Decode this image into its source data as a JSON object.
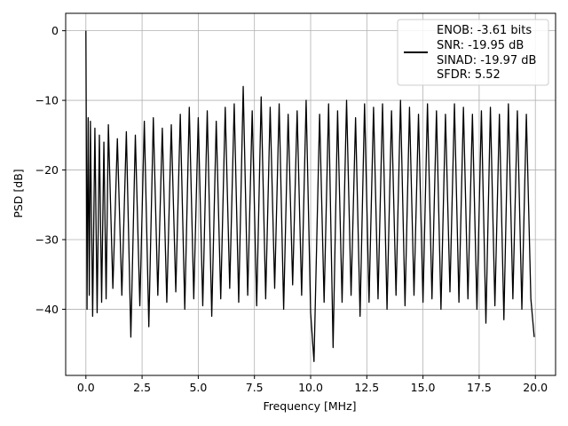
{
  "chart_data": {
    "type": "line",
    "xlabel": "Frequency [MHz]",
    "ylabel": "PSD [dB]",
    "xlim": [
      -0.9,
      20.9
    ],
    "ylim": [
      -49.5,
      2.5
    ],
    "xticks": [
      0.0,
      2.5,
      5.0,
      7.5,
      10.0,
      12.5,
      15.0,
      17.5,
      20.0
    ],
    "xtick_labels": [
      "0.0",
      "2.5",
      "5.0",
      "7.5",
      "10.0",
      "12.5",
      "15.0",
      "17.5",
      "20.0"
    ],
    "yticks": [
      0,
      -10,
      -20,
      -30,
      -40
    ],
    "ytick_labels": [
      "0",
      "−10",
      "−20",
      "−30",
      "−40"
    ],
    "grid": true,
    "legend_position": "top-right",
    "legend": [
      "ENOB: -3.61 bits",
      "SNR: -19.95 dB",
      "SINAD: -19.97 dB",
      "SFDR: 5.52"
    ],
    "series": [
      {
        "color": "#000000",
        "x": [
          0.0,
          0.05,
          0.1,
          0.15,
          0.2,
          0.3,
          0.4,
          0.5,
          0.6,
          0.7,
          0.8,
          0.9,
          1.0,
          1.2,
          1.4,
          1.6,
          1.8,
          2.0,
          2.2,
          2.4,
          2.6,
          2.8,
          3.0,
          3.2,
          3.4,
          3.6,
          3.8,
          4.0,
          4.2,
          4.4,
          4.6,
          4.8,
          5.0,
          5.2,
          5.4,
          5.6,
          5.8,
          6.0,
          6.2,
          6.4,
          6.6,
          6.8,
          7.0,
          7.2,
          7.4,
          7.6,
          7.8,
          8.0,
          8.2,
          8.4,
          8.6,
          8.8,
          9.0,
          9.2,
          9.4,
          9.6,
          9.8,
          10.0,
          10.15,
          10.4,
          10.6,
          10.8,
          11.0,
          11.2,
          11.4,
          11.6,
          11.8,
          12.0,
          12.2,
          12.4,
          12.6,
          12.8,
          13.0,
          13.2,
          13.4,
          13.6,
          13.8,
          14.0,
          14.2,
          14.4,
          14.6,
          14.8,
          15.0,
          15.2,
          15.4,
          15.6,
          15.8,
          16.0,
          16.2,
          16.4,
          16.6,
          16.8,
          17.0,
          17.2,
          17.4,
          17.6,
          17.8,
          18.0,
          18.2,
          18.4,
          18.6,
          18.8,
          19.0,
          19.2,
          19.4,
          19.6,
          19.8,
          19.95
        ],
        "y": [
          0.0,
          -40.0,
          -12.5,
          -38.0,
          -13.0,
          -41.0,
          -14.0,
          -40.5,
          -15.0,
          -39.0,
          -16.0,
          -38.5,
          -13.5,
          -37.0,
          -15.5,
          -38.0,
          -14.5,
          -44.0,
          -15.0,
          -39.5,
          -13.0,
          -42.5,
          -12.5,
          -38.0,
          -14.0,
          -39.0,
          -13.5,
          -37.5,
          -12.0,
          -40.0,
          -11.0,
          -38.5,
          -12.5,
          -39.5,
          -11.5,
          -41.0,
          -13.0,
          -38.5,
          -11.0,
          -37.0,
          -10.5,
          -39.0,
          -8.0,
          -38.0,
          -11.5,
          -39.5,
          -9.5,
          -38.5,
          -11.0,
          -37.0,
          -10.5,
          -40.0,
          -12.0,
          -36.5,
          -11.5,
          -38.0,
          -10.0,
          -40.5,
          -47.5,
          -12.0,
          -39.0,
          -10.5,
          -45.5,
          -11.5,
          -39.0,
          -10.0,
          -38.0,
          -12.5,
          -41.0,
          -10.5,
          -39.0,
          -11.0,
          -38.5,
          -10.5,
          -40.0,
          -11.5,
          -38.0,
          -10.0,
          -39.5,
          -11.0,
          -38.0,
          -12.0,
          -39.0,
          -10.5,
          -38.5,
          -11.5,
          -40.0,
          -12.0,
          -37.5,
          -10.5,
          -39.0,
          -11.0,
          -38.5,
          -12.0,
          -40.0,
          -11.5,
          -42.0,
          -11.0,
          -39.5,
          -12.0,
          -41.5,
          -10.5,
          -38.5,
          -11.5,
          -40.0,
          -12.0,
          -38.5,
          -44.0
        ]
      }
    ]
  }
}
